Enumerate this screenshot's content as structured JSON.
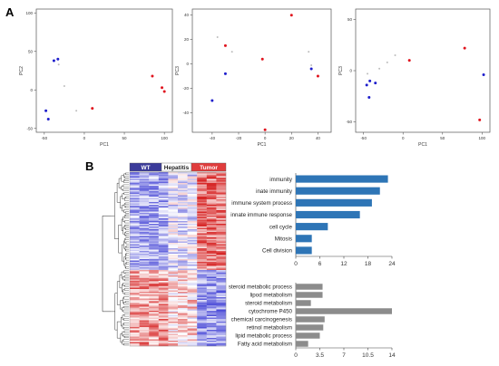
{
  "panel_labels": {
    "a": "A",
    "b": "B"
  },
  "colors": {
    "blue": "#1e1ecc",
    "red": "#e0141e",
    "grey": "#bdbdbd",
    "bar_blue": "#2e75b6",
    "bar_grey": "#8c8c8c",
    "legend_wt": "#3b3b9a",
    "legend_hepatitis": "#ffffff",
    "legend_tumor": "#e03c3c"
  },
  "heatmap": {
    "legend": [
      "WT",
      "Hepatitis",
      "Tumor"
    ]
  },
  "chart_data": [
    {
      "type": "scatter",
      "xlabel": "PC1",
      "ylabel": "PC2",
      "xlim": [
        -60,
        110
      ],
      "ylim": [
        -55,
        105
      ],
      "xticks": [
        "-50",
        "0",
        "50",
        "100"
      ],
      "xtick_values": [
        -50,
        0,
        50,
        100
      ],
      "yticks": [
        "-50",
        "0",
        "50",
        "100"
      ],
      "ytick_values": [
        -50,
        0,
        50,
        100
      ],
      "series": [
        {
          "color": "blue",
          "points": [
            [
              -38,
              38
            ],
            [
              -33,
              40
            ],
            [
              -48,
              -27
            ],
            [
              -45,
              -38
            ]
          ]
        },
        {
          "color": "red",
          "points": [
            [
              85,
              18
            ],
            [
              97,
              3
            ],
            [
              100,
              -2
            ],
            [
              10,
              -24
            ]
          ]
        },
        {
          "color": "grey",
          "points": [
            [
              -32,
              33
            ],
            [
              -25,
              5
            ],
            [
              -10,
              -27
            ]
          ]
        }
      ]
    },
    {
      "type": "scatter",
      "xlabel": "PC1",
      "ylabel": "PC3",
      "xlim": [
        -55,
        50
      ],
      "ylim": [
        -56,
        45
      ],
      "xticks": [
        "-40",
        "-20",
        "0",
        "20",
        "40"
      ],
      "xtick_values": [
        -40,
        -20,
        0,
        20,
        40
      ],
      "yticks": [
        "-40",
        "-20",
        "0",
        "20",
        "40"
      ],
      "ytick_values": [
        -40,
        -20,
        0,
        20,
        40
      ],
      "series": [
        {
          "color": "blue",
          "points": [
            [
              -30,
              -8
            ],
            [
              -40,
              -30
            ],
            [
              35,
              -4
            ]
          ]
        },
        {
          "color": "red",
          "points": [
            [
              20,
              40
            ],
            [
              -30,
              15
            ],
            [
              -2,
              4
            ],
            [
              40,
              -10
            ],
            [
              0,
              -54
            ]
          ]
        },
        {
          "color": "grey",
          "points": [
            [
              -36,
              22
            ],
            [
              -25,
              10
            ],
            [
              33,
              10
            ],
            [
              35,
              -1
            ]
          ]
        }
      ]
    },
    {
      "type": "scatter",
      "xlabel": "PC1",
      "ylabel": "PC3",
      "xlim": [
        -60,
        110
      ],
      "ylim": [
        -60,
        60
      ],
      "xticks": [
        "-50",
        "0",
        "50",
        "100"
      ],
      "xtick_values": [
        -50,
        0,
        50,
        100
      ],
      "yticks": [
        "-50",
        "0",
        "50"
      ],
      "ytick_values": [
        -50,
        0,
        50
      ],
      "series": [
        {
          "color": "blue",
          "points": [
            [
              -42,
              -10
            ],
            [
              -35,
              -12
            ],
            [
              -46,
              -14
            ],
            [
              -43,
              -26
            ],
            [
              102,
              -4
            ]
          ]
        },
        {
          "color": "red",
          "points": [
            [
              78,
              22
            ],
            [
              8,
              10
            ],
            [
              97,
              -48
            ]
          ]
        },
        {
          "color": "grey",
          "points": [
            [
              -30,
              2
            ],
            [
              -20,
              8
            ],
            [
              -10,
              15
            ],
            [
              -45,
              -3
            ]
          ]
        }
      ]
    },
    {
      "type": "bar",
      "orientation": "horizontal",
      "categories": [
        "immunity",
        "inate immunity",
        "immune system process",
        "innate immune response",
        "cell cycle",
        "Mitosis",
        "Cell division"
      ],
      "values": [
        23,
        21,
        19,
        16,
        8,
        4,
        4
      ],
      "xlim": [
        0,
        24
      ],
      "xticks": [
        "0",
        "6",
        "12",
        "18",
        "24"
      ],
      "xtick_values": [
        0,
        6,
        12,
        18,
        24
      ],
      "color": "bar_blue"
    },
    {
      "type": "bar",
      "orientation": "horizontal",
      "categories": [
        "steroid metabolic process",
        "lipod metabolism",
        "steroid metabolism",
        "cytochrome P450",
        "chemical carcinogenesis",
        "retinol metabolism",
        "lipid metabolic process",
        "Fatty acid metabolism"
      ],
      "values": [
        3.9,
        3.9,
        2.2,
        14.0,
        4.2,
        4.0,
        3.5,
        1.8
      ],
      "xlim": [
        0,
        14
      ],
      "xticks": [
        "0",
        "3.5",
        "7",
        "10.5",
        "14"
      ],
      "xtick_values": [
        0,
        3.5,
        7,
        10.5,
        14
      ],
      "color": "bar_grey"
    }
  ]
}
